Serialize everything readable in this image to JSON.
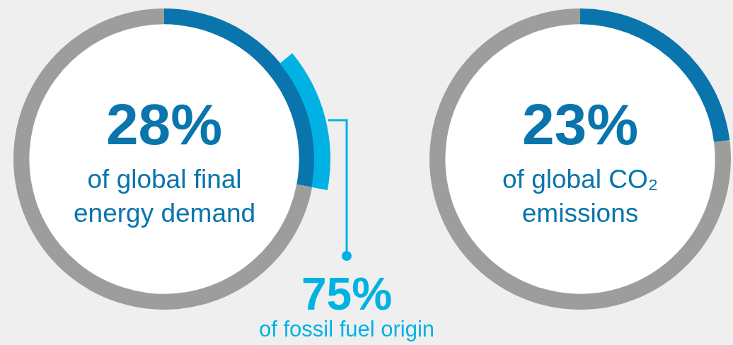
{
  "chart_data": [
    {
      "type": "donut",
      "categories": [
        null,
        null
      ],
      "values": [
        28,
        72
      ],
      "colors": [
        "#0a75ad",
        "#9d9d9c"
      ],
      "title": "28%",
      "subtitle": "of global final\nenergy demand",
      "annotations": [
        "75%",
        "of fossil fuel origin"
      ]
    },
    {
      "type": "donut",
      "categories": [
        null,
        null
      ],
      "values": [
        23,
        77
      ],
      "colors": [
        "#0a75ad",
        "#9d9d9c"
      ],
      "title": "23%",
      "subtitle": "of global CO₂\nemissions"
    }
  ]
}
